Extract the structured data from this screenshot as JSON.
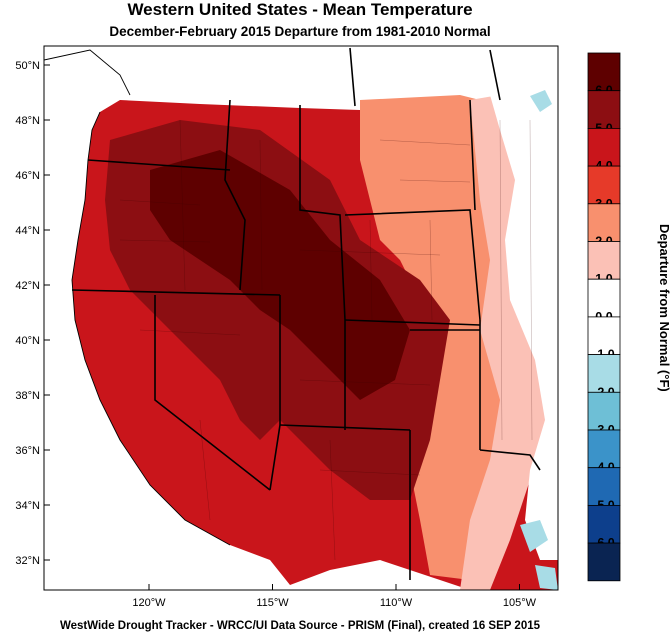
{
  "title": "Western United States - Mean Temperature",
  "subtitle": "December-February 2015  Departure from 1981-2010 Normal",
  "footer": "WestWide Drought Tracker - WRCC/UI  Data Source - PRISM (Final), created 16 SEP 2015",
  "latitude_labels": [
    "50°N",
    "48°N",
    "46°N",
    "44°N",
    "42°N",
    "40°N",
    "38°N",
    "36°N",
    "34°N",
    "32°N"
  ],
  "longitude_labels": [
    "120°W",
    "115°W",
    "110°W",
    "105°W"
  ],
  "legend": {
    "title": "Departure from Normal (°F)",
    "bins": [
      {
        "label": "6.0",
        "color": "#5e0000"
      },
      {
        "label": "5.0",
        "color": "#8c0e12"
      },
      {
        "label": "4.0",
        "color": "#c9151b"
      },
      {
        "label": "3.0",
        "color": "#e63a29"
      },
      {
        "label": "2.0",
        "color": "#f8906e"
      },
      {
        "label": "1.0",
        "color": "#fbc1b6"
      },
      {
        "label": "0.0",
        "color": "#ffffff"
      },
      {
        "label": "-1.0",
        "color": "#ffffff"
      },
      {
        "label": "-2.0",
        "color": "#a8dce6"
      },
      {
        "label": "-3.0",
        "color": "#6ebfd6"
      },
      {
        "label": "-4.0",
        "color": "#3b93c9"
      },
      {
        "label": "-5.0",
        "color": "#1f69b3"
      },
      {
        "label": "-6.0",
        "color": "#0d3f8c"
      },
      {
        "label": "",
        "color": "#0a2452"
      }
    ]
  }
}
